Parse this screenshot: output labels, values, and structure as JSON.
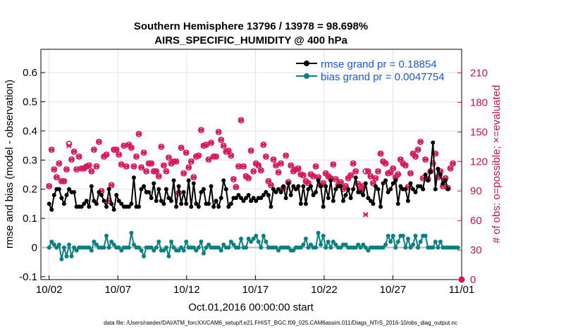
{
  "chart_data": {
    "type": "line",
    "title": [
      "Southern Hemisphere 13796 / 13978 = 98.698%",
      "AIRS_SPECIFIC_HUMIDITY @ 400 hPa"
    ],
    "xlabel": "Oct.01,2016 00:00:00 start",
    "ylabel_left": "rmse and bias (model - observation)",
    "ylabel_right": "# of obs: o=possible; ×=evaluated",
    "footnote": "data file: /Users/raeder/DAI/ATM_forcXX/CAM6_setup/f.e21.FHIST_BGC.f09_025.CAM6assim.011/Diags_NTrS_2016-10/obs_diag_output.nc",
    "x_ticks": [
      "10/02",
      "10/07",
      "10/12",
      "10/17",
      "10/22",
      "10/27",
      "11/01"
    ],
    "x_tick_days": [
      1,
      6,
      11,
      16,
      21,
      26,
      31
    ],
    "xlim": [
      0.4,
      31
    ],
    "ylim_left": [
      -0.11,
      0.68
    ],
    "y_ticks_left": [
      "-0.1",
      "0",
      "0.1",
      "0.2",
      "0.3",
      "0.4",
      "0.5",
      "0.6"
    ],
    "ylim_right": [
      0,
      234
    ],
    "y_ticks_right": [
      "0",
      "30",
      "60",
      "90",
      "120",
      "150",
      "180",
      "210"
    ],
    "grid": true,
    "legend_position": "top-right",
    "series": [
      {
        "name": "rmse grand pr = 0.18854",
        "axis": "left",
        "color": "#000000",
        "values": [
          0.15,
          0.13,
          0.18,
          0.2,
          0.2,
          0.17,
          0.15,
          0.18,
          0.2,
          0.19,
          0.19,
          0.14,
          0.14,
          0.14,
          0.15,
          0.16,
          0.14,
          0.21,
          0.16,
          0.15,
          0.19,
          0.18,
          0.16,
          0.14,
          0.2,
          0.15,
          0.13,
          0.18,
          0.16,
          0.15,
          0.14,
          0.14,
          0.14,
          0.15,
          0.24,
          0.14,
          0.14,
          0.2,
          0.21,
          0.19,
          0.19,
          0.17,
          0.22,
          0.16,
          0.2,
          0.16,
          0.15,
          0.2,
          0.17,
          0.16,
          0.23,
          0.14,
          0.21,
          0.15,
          0.19,
          0.15,
          0.23,
          0.14,
          0.22,
          0.15,
          0.14,
          0.19,
          0.2,
          0.15,
          0.15,
          0.21,
          0.14,
          0.16,
          0.14,
          0.17,
          0.23,
          0.2,
          0.14,
          0.15,
          0.17,
          0.17,
          0.18,
          0.17,
          0.16,
          0.17,
          0.18,
          0.16,
          0.17,
          0.16,
          0.17,
          0.17,
          0.18,
          0.19,
          0.18,
          0.14,
          0.2,
          0.19,
          0.2,
          0.19,
          0.21,
          0.17,
          0.22,
          0.18,
          0.21,
          0.2,
          0.21,
          0.15,
          0.21,
          0.15,
          0.2,
          0.21,
          0.18,
          0.19,
          0.23,
          0.21,
          0.14,
          0.21,
          0.17,
          0.23,
          0.16,
          0.2,
          0.21,
          0.21,
          0.16,
          0.18,
          0.2,
          0.17,
          0.2,
          0.24,
          0.19,
          0.19,
          0.18,
          0.22,
          0.17,
          0.16,
          0.15,
          0.21,
          0.2,
          0.14,
          0.22,
          0.23,
          0.19,
          0.2,
          0.22,
          0.23,
          0.15,
          0.21,
          0.2,
          0.2,
          0.16,
          0.22,
          0.2,
          0.19,
          0.21,
          0.21,
          0.2,
          0.25,
          0.23,
          0.26,
          0.36,
          0.2,
          0.27,
          0.25,
          0.22,
          0.23,
          0.2
        ]
      },
      {
        "name": "bias grand pr = 0.0047754",
        "axis": "left",
        "color": "#0a8082",
        "values": [
          0.0,
          0.02,
          0.01,
          0.0,
          0.01,
          -0.04,
          0.0,
          -0.03,
          0.01,
          -0.03,
          0.0,
          -0.01,
          0.0,
          0.0,
          0.0,
          0.0,
          0.0,
          -0.01,
          0.02,
          0.01,
          0.0,
          0.0,
          0.0,
          0.04,
          0.0,
          0.02,
          0.01,
          0.0,
          0.0,
          -0.01,
          0.0,
          0.0,
          0.0,
          0.05,
          0.01,
          0.0,
          0.0,
          -0.01,
          -0.03,
          0.0,
          0.0,
          0.0,
          -0.01,
          0.0,
          0.02,
          -0.01,
          -0.01,
          0.0,
          -0.03,
          0.02,
          0.0,
          -0.01,
          -0.01,
          0.0,
          -0.01,
          0.02,
          0.0,
          0.0,
          0.0,
          -0.01,
          0.0,
          0.02,
          -0.02,
          0.0,
          0.01,
          0.0,
          0.0,
          0.0,
          0.0,
          -0.01,
          0.01,
          0.0,
          0.0,
          0.02,
          0.01,
          0.0,
          0.0,
          0.03,
          0.0,
          0.0,
          0.03,
          0.02,
          0.03,
          0.04,
          0.02,
          0.0,
          0.04,
          0.02,
          0.0,
          0.0,
          0.0,
          0.0,
          -0.01,
          0.0,
          0.0,
          0.0,
          0.0,
          -0.01,
          -0.01,
          0.0,
          0.0,
          0.0,
          0.01,
          0.03,
          0.0,
          0.01,
          0.0,
          0.0,
          0.05,
          0.01,
          0.04,
          0.0,
          0.02,
          0.0,
          0.02,
          0.01,
          0.0,
          0.0,
          0.01,
          0.01,
          0.0,
          0.0,
          0.0,
          0.0,
          0.01,
          0.0,
          0.01,
          0.0,
          -0.01,
          0.0,
          0.0,
          0.0,
          0.0,
          0.0,
          0.0,
          0.01,
          0.04,
          0.02,
          0.04,
          0.0,
          0.02,
          0.04,
          0.04,
          0.0,
          0.03,
          0.0,
          0.01,
          0.04,
          0.0,
          0.02,
          0.04,
          0.04,
          0.0,
          0.0,
          0.0,
          0.02,
          0.0,
          0.02,
          0.0,
          0.0,
          0.0,
          0.0,
          0.0,
          0.0,
          0.0
        ]
      },
      {
        "name": "# of obs possible",
        "axis": "right",
        "color": "#d6185a",
        "marker": "o",
        "values": [
          95,
          132,
          112,
          104,
          118,
          100,
          100,
          112,
          138,
          122,
          130,
          112,
          125,
          113,
          113,
          115,
          116,
          110,
          132,
          115,
          140,
          90,
          125,
          127,
          80,
          96,
          132,
          132,
          127,
          117,
          136,
          115,
          137,
          134,
          115,
          125,
          148,
          114,
          129,
          110,
          118,
          118,
          110,
          110,
          105,
          135,
          116,
          110,
          124,
          118,
          120,
          120,
          88,
          134,
          108,
          129,
          114,
          120,
          104,
          125,
          126,
          152,
          136,
          137,
          122,
          139,
          125,
          125,
          150,
          142,
          136,
          130,
          131,
          126,
          102,
          94,
          115,
          162,
          115,
          105,
          103,
          131,
          110,
          118,
          116,
          111,
          137,
          125,
          100,
          96,
          122,
          116,
          109,
          118,
          93,
          126,
          99,
          116,
          110,
          112,
          113,
          107,
          106,
          100,
          98,
          107,
          105,
          115,
          104,
          96,
          98,
          108,
          105,
          103,
          117,
          102,
          96,
          99,
          92,
          95,
          103,
          106,
          118,
          110,
          97,
          92,
          95,
          110,
          110,
          105,
          98,
          103,
          110,
          128,
          120,
          118,
          108,
          109,
          113,
          104,
          107,
          122,
          118,
          116,
          94,
          108,
          128,
          125,
          132,
          140,
          103,
          122,
          102,
          110,
          118,
          128,
          104,
          110,
          95,
          103,
          93,
          113,
          118
        ]
      },
      {
        "name": "# of obs evaluated",
        "axis": "right",
        "color": "#d6185a",
        "marker": "x",
        "values": [
          95,
          132,
          112,
          104,
          118,
          100,
          100,
          112,
          136,
          122,
          130,
          112,
          125,
          113,
          113,
          115,
          116,
          110,
          132,
          115,
          140,
          90,
          125,
          127,
          80,
          96,
          132,
          132,
          127,
          117,
          136,
          115,
          137,
          134,
          115,
          125,
          148,
          114,
          129,
          110,
          118,
          118,
          110,
          110,
          105,
          135,
          116,
          110,
          124,
          118,
          120,
          120,
          88,
          134,
          108,
          129,
          114,
          120,
          104,
          125,
          126,
          152,
          136,
          137,
          122,
          139,
          125,
          125,
          150,
          142,
          136,
          130,
          131,
          126,
          102,
          94,
          115,
          162,
          115,
          105,
          103,
          131,
          110,
          118,
          116,
          111,
          137,
          125,
          100,
          96,
          122,
          116,
          109,
          118,
          93,
          126,
          99,
          116,
          110,
          112,
          113,
          107,
          106,
          100,
          98,
          107,
          105,
          115,
          104,
          96,
          98,
          108,
          105,
          103,
          117,
          102,
          96,
          99,
          92,
          95,
          103,
          106,
          118,
          110,
          97,
          92,
          95,
          66,
          110,
          105,
          98,
          103,
          110,
          128,
          120,
          118,
          108,
          109,
          113,
          104,
          107,
          122,
          118,
          116,
          94,
          108,
          128,
          125,
          132,
          140,
          103,
          122,
          102,
          110,
          118,
          128,
          104,
          110,
          95,
          103,
          93,
          113,
          118
        ]
      }
    ],
    "extra_points": [
      {
        "series": "# of obs possible",
        "day": 31,
        "value": 0
      }
    ]
  }
}
